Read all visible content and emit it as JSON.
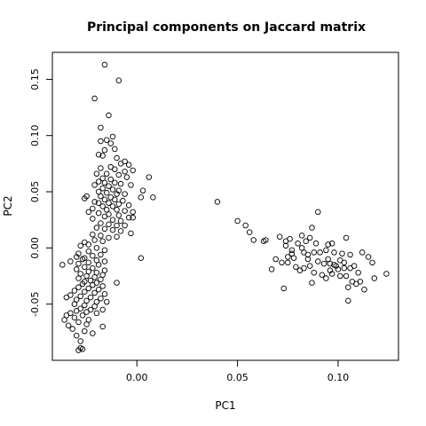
{
  "chart_data": {
    "type": "scatter",
    "title": "Principal components on Jaccard matrix",
    "xlabel": "PC1",
    "ylabel": "PC2",
    "xlim": [
      -0.042,
      0.13
    ],
    "ylim": [
      -0.1,
      0.174
    ],
    "xticks": [
      0.0,
      0.05,
      0.1
    ],
    "xtick_labels": [
      "0.00",
      "0.05",
      "0.10"
    ],
    "yticks": [
      -0.05,
      0.0,
      0.05,
      0.1,
      0.15
    ],
    "ytick_labels": [
      "-0.05",
      "0.00",
      "0.05",
      "0.10",
      "0.15"
    ],
    "grid": false,
    "legend": "none",
    "marker": "open-circle",
    "series": [
      {
        "values": [
          [
            -0.016,
            0.163
          ],
          [
            -0.009,
            0.149
          ],
          [
            -0.021,
            0.133
          ],
          [
            -0.014,
            0.118
          ],
          [
            -0.018,
            0.107
          ],
          [
            -0.012,
            0.099
          ],
          [
            -0.015,
            0.096
          ],
          [
            -0.018,
            0.095
          ],
          [
            -0.013,
            0.093
          ],
          [
            -0.011,
            0.088
          ],
          [
            -0.016,
            0.087
          ],
          [
            -0.019,
            0.083
          ],
          [
            -0.017,
            0.082
          ],
          [
            -0.01,
            0.08
          ],
          [
            -0.006,
            0.077
          ],
          [
            -0.004,
            0.074
          ],
          [
            -0.008,
            0.075
          ],
          [
            -0.013,
            0.072
          ],
          [
            -0.018,
            0.071
          ],
          [
            -0.011,
            0.07
          ],
          [
            -0.006,
            0.068
          ],
          [
            -0.002,
            0.069
          ],
          [
            -0.02,
            0.066
          ],
          [
            -0.015,
            0.066
          ],
          [
            -0.009,
            0.065
          ],
          [
            -0.005,
            0.063
          ],
          [
            0.006,
            0.063
          ],
          [
            -0.017,
            0.062
          ],
          [
            -0.013,
            0.061
          ],
          [
            -0.019,
            0.059
          ],
          [
            -0.016,
            0.058
          ],
          [
            -0.011,
            0.058
          ],
          [
            -0.008,
            0.057
          ],
          [
            -0.021,
            0.056
          ],
          [
            -0.014,
            0.055
          ],
          [
            -0.003,
            0.056
          ],
          [
            -0.017,
            0.053
          ],
          [
            -0.012,
            0.052
          ],
          [
            -0.009,
            0.051
          ],
          [
            0.003,
            0.051
          ],
          [
            -0.019,
            0.05
          ],
          [
            -0.015,
            0.049
          ],
          [
            -0.01,
            0.048
          ],
          [
            -0.006,
            0.048
          ],
          [
            -0.025,
            0.046
          ],
          [
            -0.018,
            0.046
          ],
          [
            -0.013,
            0.045
          ],
          [
            0.002,
            0.045
          ],
          [
            0.008,
            0.045
          ],
          [
            -0.026,
            0.044
          ],
          [
            -0.016,
            0.043
          ],
          [
            -0.011,
            0.043
          ],
          [
            -0.007,
            0.042
          ],
          [
            -0.021,
            0.041
          ],
          [
            -0.019,
            0.04
          ],
          [
            -0.014,
            0.04
          ],
          [
            -0.009,
            0.039
          ],
          [
            -0.004,
            0.038
          ],
          [
            -0.017,
            0.037
          ],
          [
            -0.012,
            0.037
          ],
          [
            -0.022,
            0.035
          ],
          [
            -0.015,
            0.034
          ],
          [
            -0.01,
            0.034
          ],
          [
            -0.006,
            0.033
          ],
          [
            -0.002,
            0.032
          ],
          [
            -0.024,
            0.032
          ],
          [
            -0.019,
            0.031
          ],
          [
            -0.014,
            0.03
          ],
          [
            -0.009,
            0.029
          ],
          [
            -0.016,
            0.028
          ],
          [
            -0.004,
            0.027
          ],
          [
            -0.002,
            0.027
          ],
          [
            -0.022,
            0.026
          ],
          [
            -0.012,
            0.025
          ],
          [
            -0.008,
            0.024
          ],
          [
            -0.018,
            0.022
          ],
          [
            -0.014,
            0.021
          ],
          [
            -0.01,
            0.02
          ],
          [
            -0.006,
            0.02
          ],
          [
            -0.02,
            0.018
          ],
          [
            -0.016,
            0.017
          ],
          [
            -0.012,
            0.016
          ],
          [
            -0.008,
            0.015
          ],
          [
            -0.003,
            0.013
          ],
          [
            -0.022,
            0.012
          ],
          [
            -0.018,
            0.011
          ],
          [
            -0.01,
            0.01
          ],
          [
            -0.014,
            0.009
          ],
          [
            -0.021,
            0.007
          ],
          [
            -0.017,
            0.006
          ],
          [
            -0.026,
            0.005
          ],
          [
            -0.024,
            0.003
          ],
          [
            -0.028,
            0.002
          ],
          [
            -0.02,
            0.0
          ],
          [
            -0.016,
            -0.002
          ],
          [
            -0.024,
            -0.003
          ],
          [
            -0.029,
            -0.005
          ],
          [
            -0.018,
            -0.006
          ],
          [
            -0.022,
            -0.007
          ],
          [
            -0.03,
            -0.008
          ],
          [
            -0.026,
            -0.009
          ],
          [
            0.002,
            -0.009
          ],
          [
            -0.027,
            -0.01
          ],
          [
            -0.02,
            -0.011
          ],
          [
            -0.016,
            -0.012
          ],
          [
            -0.033,
            -0.012
          ],
          [
            -0.024,
            -0.013
          ],
          [
            -0.029,
            -0.014
          ],
          [
            -0.037,
            -0.015
          ],
          [
            -0.019,
            -0.015
          ],
          [
            -0.026,
            -0.017
          ],
          [
            -0.022,
            -0.018
          ],
          [
            -0.03,
            -0.019
          ],
          [
            -0.016,
            -0.02
          ],
          [
            -0.024,
            -0.021
          ],
          [
            -0.02,
            -0.022
          ],
          [
            -0.028,
            -0.023
          ],
          [
            -0.017,
            -0.024
          ],
          [
            -0.025,
            -0.025
          ],
          [
            -0.021,
            -0.026
          ],
          [
            -0.029,
            -0.027
          ],
          [
            -0.018,
            -0.028
          ],
          [
            -0.023,
            -0.029
          ],
          [
            -0.026,
            -0.03
          ],
          [
            -0.02,
            -0.031
          ],
          [
            -0.01,
            -0.031
          ],
          [
            -0.027,
            -0.032
          ],
          [
            -0.022,
            -0.033
          ],
          [
            -0.017,
            -0.034
          ],
          [
            -0.029,
            -0.035
          ],
          [
            -0.024,
            -0.036
          ],
          [
            -0.019,
            -0.037
          ],
          [
            -0.031,
            -0.038
          ],
          [
            -0.026,
            -0.039
          ],
          [
            -0.021,
            -0.04
          ],
          [
            -0.016,
            -0.041
          ],
          [
            -0.033,
            -0.042
          ],
          [
            -0.028,
            -0.043
          ],
          [
            -0.023,
            -0.044
          ],
          [
            -0.018,
            -0.045
          ],
          [
            -0.035,
            -0.044
          ],
          [
            -0.03,
            -0.046
          ],
          [
            -0.025,
            -0.047
          ],
          [
            -0.02,
            -0.048
          ],
          [
            -0.015,
            -0.048
          ],
          [
            -0.031,
            -0.05
          ],
          [
            -0.026,
            -0.051
          ],
          [
            -0.021,
            -0.052
          ],
          [
            -0.028,
            -0.054
          ],
          [
            -0.023,
            -0.055
          ],
          [
            -0.017,
            -0.055
          ],
          [
            -0.03,
            -0.056
          ],
          [
            -0.025,
            -0.057
          ],
          [
            -0.02,
            -0.058
          ],
          [
            -0.033,
            -0.058
          ],
          [
            -0.035,
            -0.06
          ],
          [
            -0.027,
            -0.06
          ],
          [
            -0.031,
            -0.062
          ],
          [
            -0.036,
            -0.064
          ],
          [
            -0.024,
            -0.064
          ],
          [
            -0.029,
            -0.066
          ],
          [
            -0.034,
            -0.069
          ],
          [
            -0.025,
            -0.068
          ],
          [
            -0.017,
            -0.07
          ],
          [
            -0.032,
            -0.072
          ],
          [
            -0.026,
            -0.074
          ],
          [
            -0.022,
            -0.076
          ],
          [
            -0.03,
            -0.078
          ],
          [
            -0.028,
            -0.083
          ],
          [
            -0.028,
            -0.089
          ],
          [
            -0.029,
            -0.091
          ],
          [
            -0.027,
            -0.09
          ],
          [
            0.04,
            0.041
          ],
          [
            0.05,
            0.024
          ],
          [
            0.054,
            0.02
          ],
          [
            0.056,
            0.014
          ],
          [
            0.058,
            0.007
          ],
          [
            0.063,
            0.006
          ],
          [
            0.064,
            0.007
          ],
          [
            0.067,
            -0.019
          ],
          [
            0.069,
            -0.01
          ],
          [
            0.071,
            0.01
          ],
          [
            0.072,
            -0.013
          ],
          [
            0.073,
            -0.036
          ],
          [
            0.074,
            0.006
          ],
          [
            0.074,
            0.002
          ],
          [
            0.075,
            -0.008
          ],
          [
            0.075,
            -0.013
          ],
          [
            0.076,
            0.008
          ],
          [
            0.077,
            -0.005
          ],
          [
            0.077,
            -0.002
          ],
          [
            0.078,
            -0.009
          ],
          [
            0.079,
            -0.017
          ],
          [
            0.08,
            0.004
          ],
          [
            0.081,
            -0.02
          ],
          [
            0.082,
            0.011
          ],
          [
            0.082,
            0.0
          ],
          [
            0.083,
            -0.004
          ],
          [
            0.083,
            -0.018
          ],
          [
            0.084,
            0.006
          ],
          [
            0.085,
            -0.006
          ],
          [
            0.085,
            -0.01
          ],
          [
            0.086,
            0.009
          ],
          [
            0.086,
            -0.016
          ],
          [
            0.087,
            0.018
          ],
          [
            0.087,
            -0.031
          ],
          [
            0.088,
            -0.004
          ],
          [
            0.088,
            -0.022
          ],
          [
            0.089,
            0.004
          ],
          [
            0.09,
            0.032
          ],
          [
            0.09,
            -0.012
          ],
          [
            0.091,
            -0.004
          ],
          [
            0.092,
            -0.024
          ],
          [
            0.093,
            -0.014
          ],
          [
            0.094,
            -0.002
          ],
          [
            0.094,
            -0.027
          ],
          [
            0.095,
            0.003
          ],
          [
            0.095,
            -0.01
          ],
          [
            0.096,
            -0.014
          ],
          [
            0.096,
            -0.02
          ],
          [
            0.097,
            0.004
          ],
          [
            0.097,
            -0.023
          ],
          [
            0.098,
            -0.004
          ],
          [
            0.098,
            -0.015
          ],
          [
            0.099,
            -0.016
          ],
          [
            0.1,
            -0.019
          ],
          [
            0.101,
            -0.011
          ],
          [
            0.101,
            -0.025
          ],
          [
            0.102,
            -0.005
          ],
          [
            0.103,
            -0.013
          ],
          [
            0.103,
            -0.018
          ],
          [
            0.104,
            0.009
          ],
          [
            0.104,
            -0.025
          ],
          [
            0.105,
            -0.035
          ],
          [
            0.105,
            -0.047
          ],
          [
            0.106,
            -0.006
          ],
          [
            0.106,
            -0.018
          ],
          [
            0.107,
            -0.03
          ],
          [
            0.108,
            -0.016
          ],
          [
            0.109,
            -0.032
          ],
          [
            0.11,
            -0.022
          ],
          [
            0.111,
            -0.03
          ],
          [
            0.112,
            -0.004
          ],
          [
            0.113,
            -0.037
          ],
          [
            0.115,
            -0.008
          ],
          [
            0.117,
            -0.013
          ],
          [
            0.118,
            -0.027
          ],
          [
            0.124,
            -0.023
          ]
        ]
      }
    ]
  }
}
